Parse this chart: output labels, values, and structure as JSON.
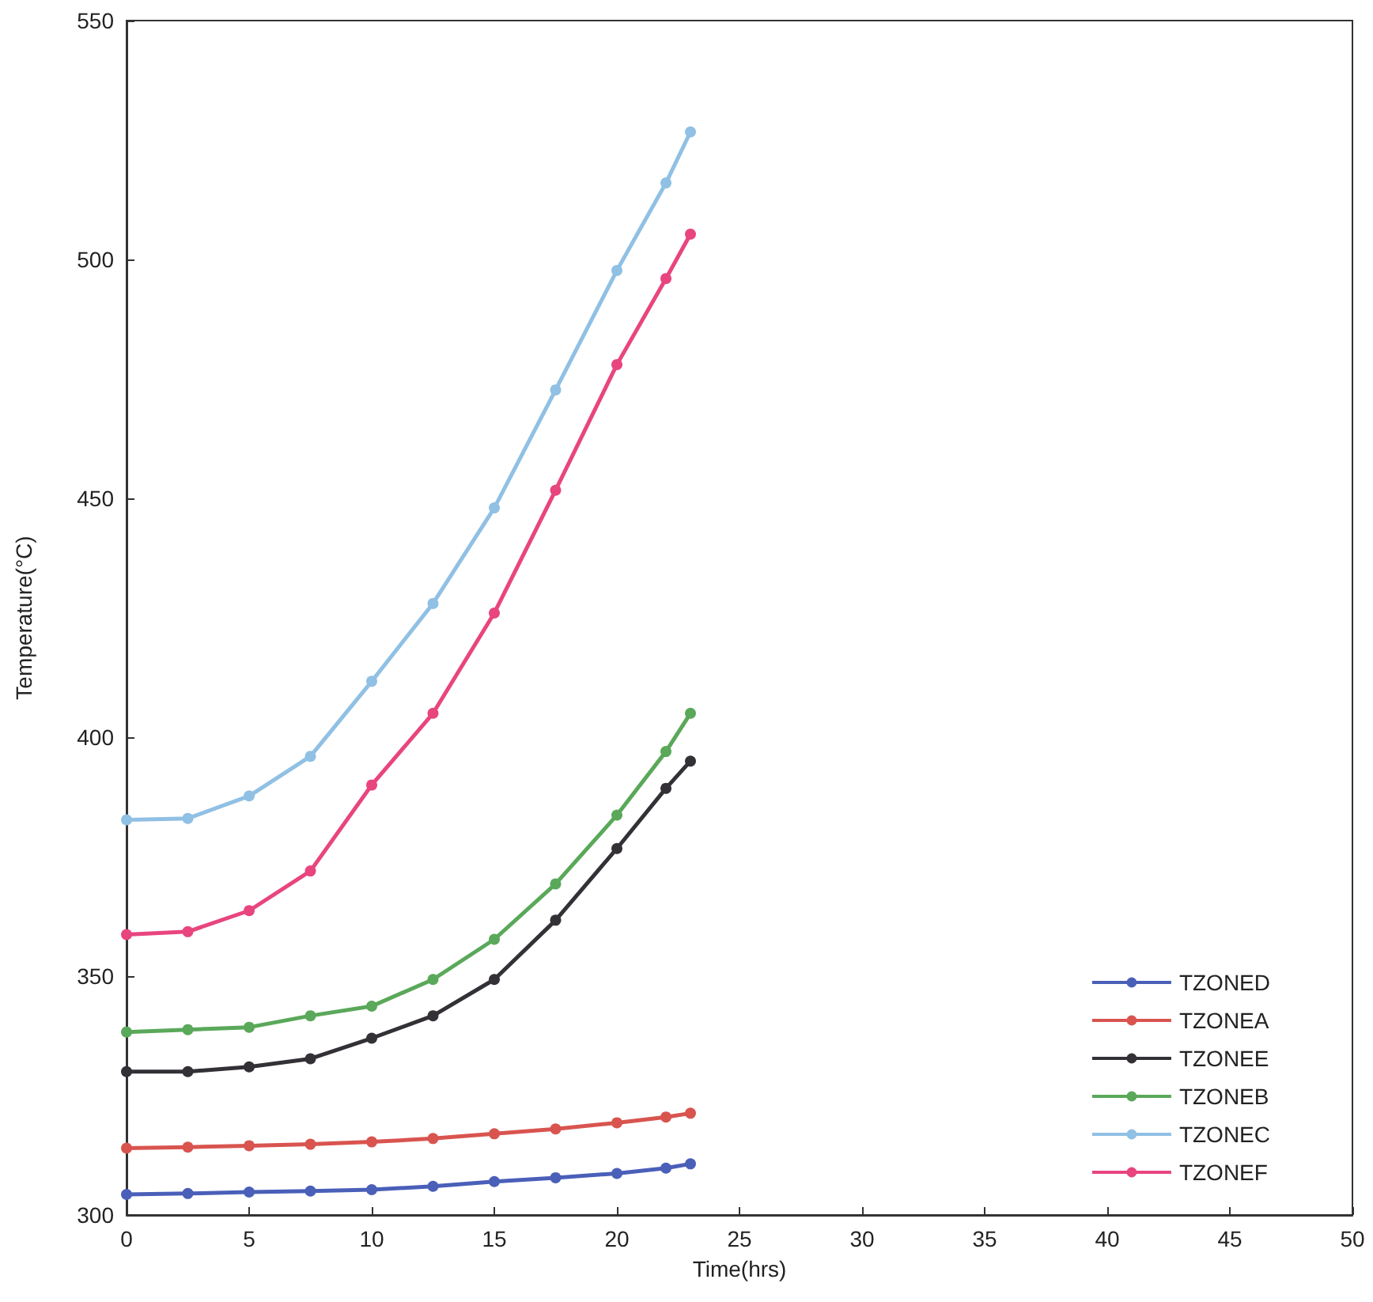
{
  "chart_data": {
    "type": "line",
    "xlabel": "Time(hrs)",
    "ylabel": "Temperature(°C)",
    "xlim": [
      0,
      50
    ],
    "xticks": [
      0,
      5,
      10,
      15,
      20,
      25,
      30,
      35,
      40,
      45,
      50
    ],
    "ylim": [
      300,
      550
    ],
    "yticks": [
      300,
      350,
      400,
      450,
      500,
      550
    ],
    "grid": false,
    "legend": "bottom right",
    "marker": "circle",
    "line_style": "solid",
    "x": [
      0,
      2.5,
      5,
      7.5,
      10,
      12.5,
      15,
      17.5,
      20,
      22,
      23
    ],
    "series": [
      {
        "name": "TZONED",
        "color": "#4a5fb8",
        "values": [
          304.3,
          304.5,
          304.8,
          305,
          305.3,
          306,
          307,
          307.8,
          308.7,
          309.8,
          310.7
        ]
      },
      {
        "name": "TZONEA",
        "color": "#d9544f",
        "values": [
          314,
          314.2,
          314.5,
          314.8,
          315.3,
          316,
          317,
          318,
          319.3,
          320.5,
          321.3
        ]
      },
      {
        "name": "TZONEE",
        "color": "#333036",
        "values": [
          330,
          330,
          331,
          332.7,
          337,
          341.7,
          349.3,
          361.7,
          376.7,
          389.3,
          395
        ]
      },
      {
        "name": "TZONEB",
        "color": "#5aa85a",
        "values": [
          338.3,
          338.8,
          339.3,
          341.7,
          343.7,
          349.3,
          357.7,
          369.3,
          383.7,
          397,
          405
        ]
      },
      {
        "name": "TZONEC",
        "color": "#90c0e4",
        "values": [
          382.7,
          383,
          387.7,
          396,
          411.7,
          428,
          448,
          472.7,
          497.7,
          516,
          526.7
        ]
      },
      {
        "name": "TZONEF",
        "color": "#e8457f",
        "values": [
          358.7,
          359.3,
          363.7,
          372,
          390,
          405,
          426,
          451.7,
          478,
          496,
          505.3
        ]
      }
    ]
  }
}
